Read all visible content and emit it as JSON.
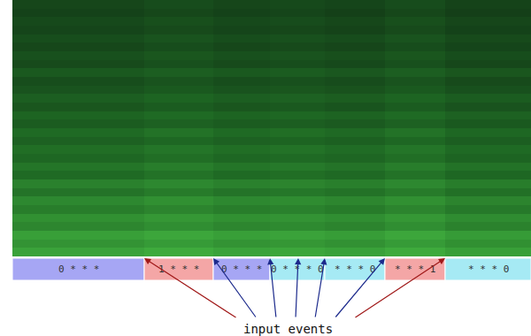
{
  "chart_data": {
    "type": "heatmap",
    "tick_labels": false,
    "xlim": [
      0,
      586
    ],
    "ylim": [
      -0.5,
      29.5
    ],
    "zlim": [
      0,
      1
    ],
    "x": [
      0,
      149,
      227,
      291,
      353,
      421,
      489,
      586
    ],
    "cells": [
      [
        0.8,
        0.84,
        0.8,
        0.82,
        0.79,
        0.84,
        0.78
      ],
      [
        0.72,
        0.76,
        0.72,
        0.74,
        0.71,
        0.76,
        0.7
      ],
      [
        0.78,
        0.82,
        0.78,
        0.8,
        0.77,
        0.82,
        0.76
      ],
      [
        0.65,
        0.69,
        0.65,
        0.67,
        0.64,
        0.69,
        0.63
      ],
      [
        0.7,
        0.74,
        0.7,
        0.72,
        0.69,
        0.74,
        0.68
      ],
      [
        0.6,
        0.64,
        0.6,
        0.62,
        0.59,
        0.64,
        0.58
      ],
      [
        0.66,
        0.7,
        0.66,
        0.68,
        0.65,
        0.7,
        0.64
      ],
      [
        0.55,
        0.59,
        0.55,
        0.57,
        0.54,
        0.59,
        0.53
      ],
      [
        0.62,
        0.66,
        0.62,
        0.64,
        0.61,
        0.66,
        0.6
      ],
      [
        0.5,
        0.54,
        0.5,
        0.52,
        0.49,
        0.54,
        0.48
      ],
      [
        0.56,
        0.6,
        0.56,
        0.58,
        0.55,
        0.6,
        0.54
      ],
      [
        0.48,
        0.52,
        0.48,
        0.5,
        0.47,
        0.52,
        0.46
      ],
      [
        0.52,
        0.56,
        0.52,
        0.54,
        0.51,
        0.56,
        0.5
      ],
      [
        0.44,
        0.48,
        0.44,
        0.46,
        0.43,
        0.48,
        0.42
      ],
      [
        0.5,
        0.54,
        0.5,
        0.52,
        0.49,
        0.54,
        0.48
      ],
      [
        0.4,
        0.44,
        0.4,
        0.42,
        0.39,
        0.44,
        0.38
      ],
      [
        0.46,
        0.5,
        0.46,
        0.48,
        0.45,
        0.5,
        0.44
      ],
      [
        0.36,
        0.4,
        0.36,
        0.38,
        0.35,
        0.4,
        0.34
      ],
      [
        0.42,
        0.46,
        0.42,
        0.44,
        0.41,
        0.46,
        0.4
      ],
      [
        0.34,
        0.38,
        0.34,
        0.36,
        0.33,
        0.38,
        0.32
      ],
      [
        0.3,
        0.34,
        0.3,
        0.32,
        0.29,
        0.34,
        0.28
      ],
      [
        0.38,
        0.42,
        0.38,
        0.4,
        0.37,
        0.42,
        0.36
      ],
      [
        0.28,
        0.32,
        0.28,
        0.3,
        0.27,
        0.32,
        0.26
      ],
      [
        0.32,
        0.36,
        0.32,
        0.34,
        0.31,
        0.36,
        0.3
      ],
      [
        0.26,
        0.3,
        0.26,
        0.28,
        0.25,
        0.3,
        0.24
      ],
      [
        0.3,
        0.34,
        0.3,
        0.32,
        0.29,
        0.34,
        0.28
      ],
      [
        0.24,
        0.28,
        0.24,
        0.26,
        0.23,
        0.28,
        0.22
      ],
      [
        0.27,
        0.31,
        0.27,
        0.29,
        0.26,
        0.31,
        0.25
      ],
      [
        0.22,
        0.26,
        0.22,
        0.24,
        0.21,
        0.26,
        0.2
      ],
      [
        0.25,
        0.29,
        0.25,
        0.27,
        0.24,
        0.29,
        0.23
      ]
    ],
    "segments": {
      "labels": [
        "0 * * *",
        "1 * * *",
        "0 * * *",
        "0 * * * 0",
        "* * * 0",
        "* * * 1",
        "* * * 0"
      ],
      "bounds": [
        0,
        149,
        227,
        291,
        353,
        421,
        489,
        586
      ],
      "colors": [
        "#a6a6f4",
        "#f4a6a6",
        "#a6a6f4",
        "#a6eaf4",
        "#a6eaf4",
        "#f4a6a6",
        "#a6eaf4"
      ]
    },
    "events": {
      "label": "input events",
      "x": [
        149,
        227,
        291,
        323,
        353,
        421,
        489
      ],
      "colors": [
        "#a01818",
        "#1c2a8c",
        "#1c2a8c",
        "#1c2a8c",
        "#1c2a8c",
        "#1c2a8c",
        "#a01818"
      ]
    }
  }
}
